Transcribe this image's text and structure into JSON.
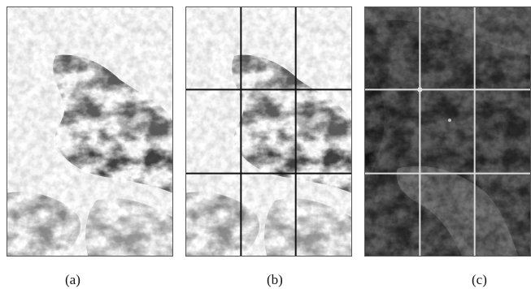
{
  "figure": {
    "panels": [
      {
        "id": "a",
        "label": "(a)",
        "variant": "satellite-image",
        "grid": false
      },
      {
        "id": "b",
        "label": "(b)",
        "variant": "satellite-image",
        "grid": true,
        "grid_color": "#111111",
        "grid_rows": 3,
        "grid_cols": 3
      },
      {
        "id": "c",
        "label": "(c)",
        "variant": "inverted-satellite-image",
        "grid": true,
        "grid_color": "#dddddd",
        "grid_rows": 3,
        "grid_cols": 3
      }
    ]
  }
}
